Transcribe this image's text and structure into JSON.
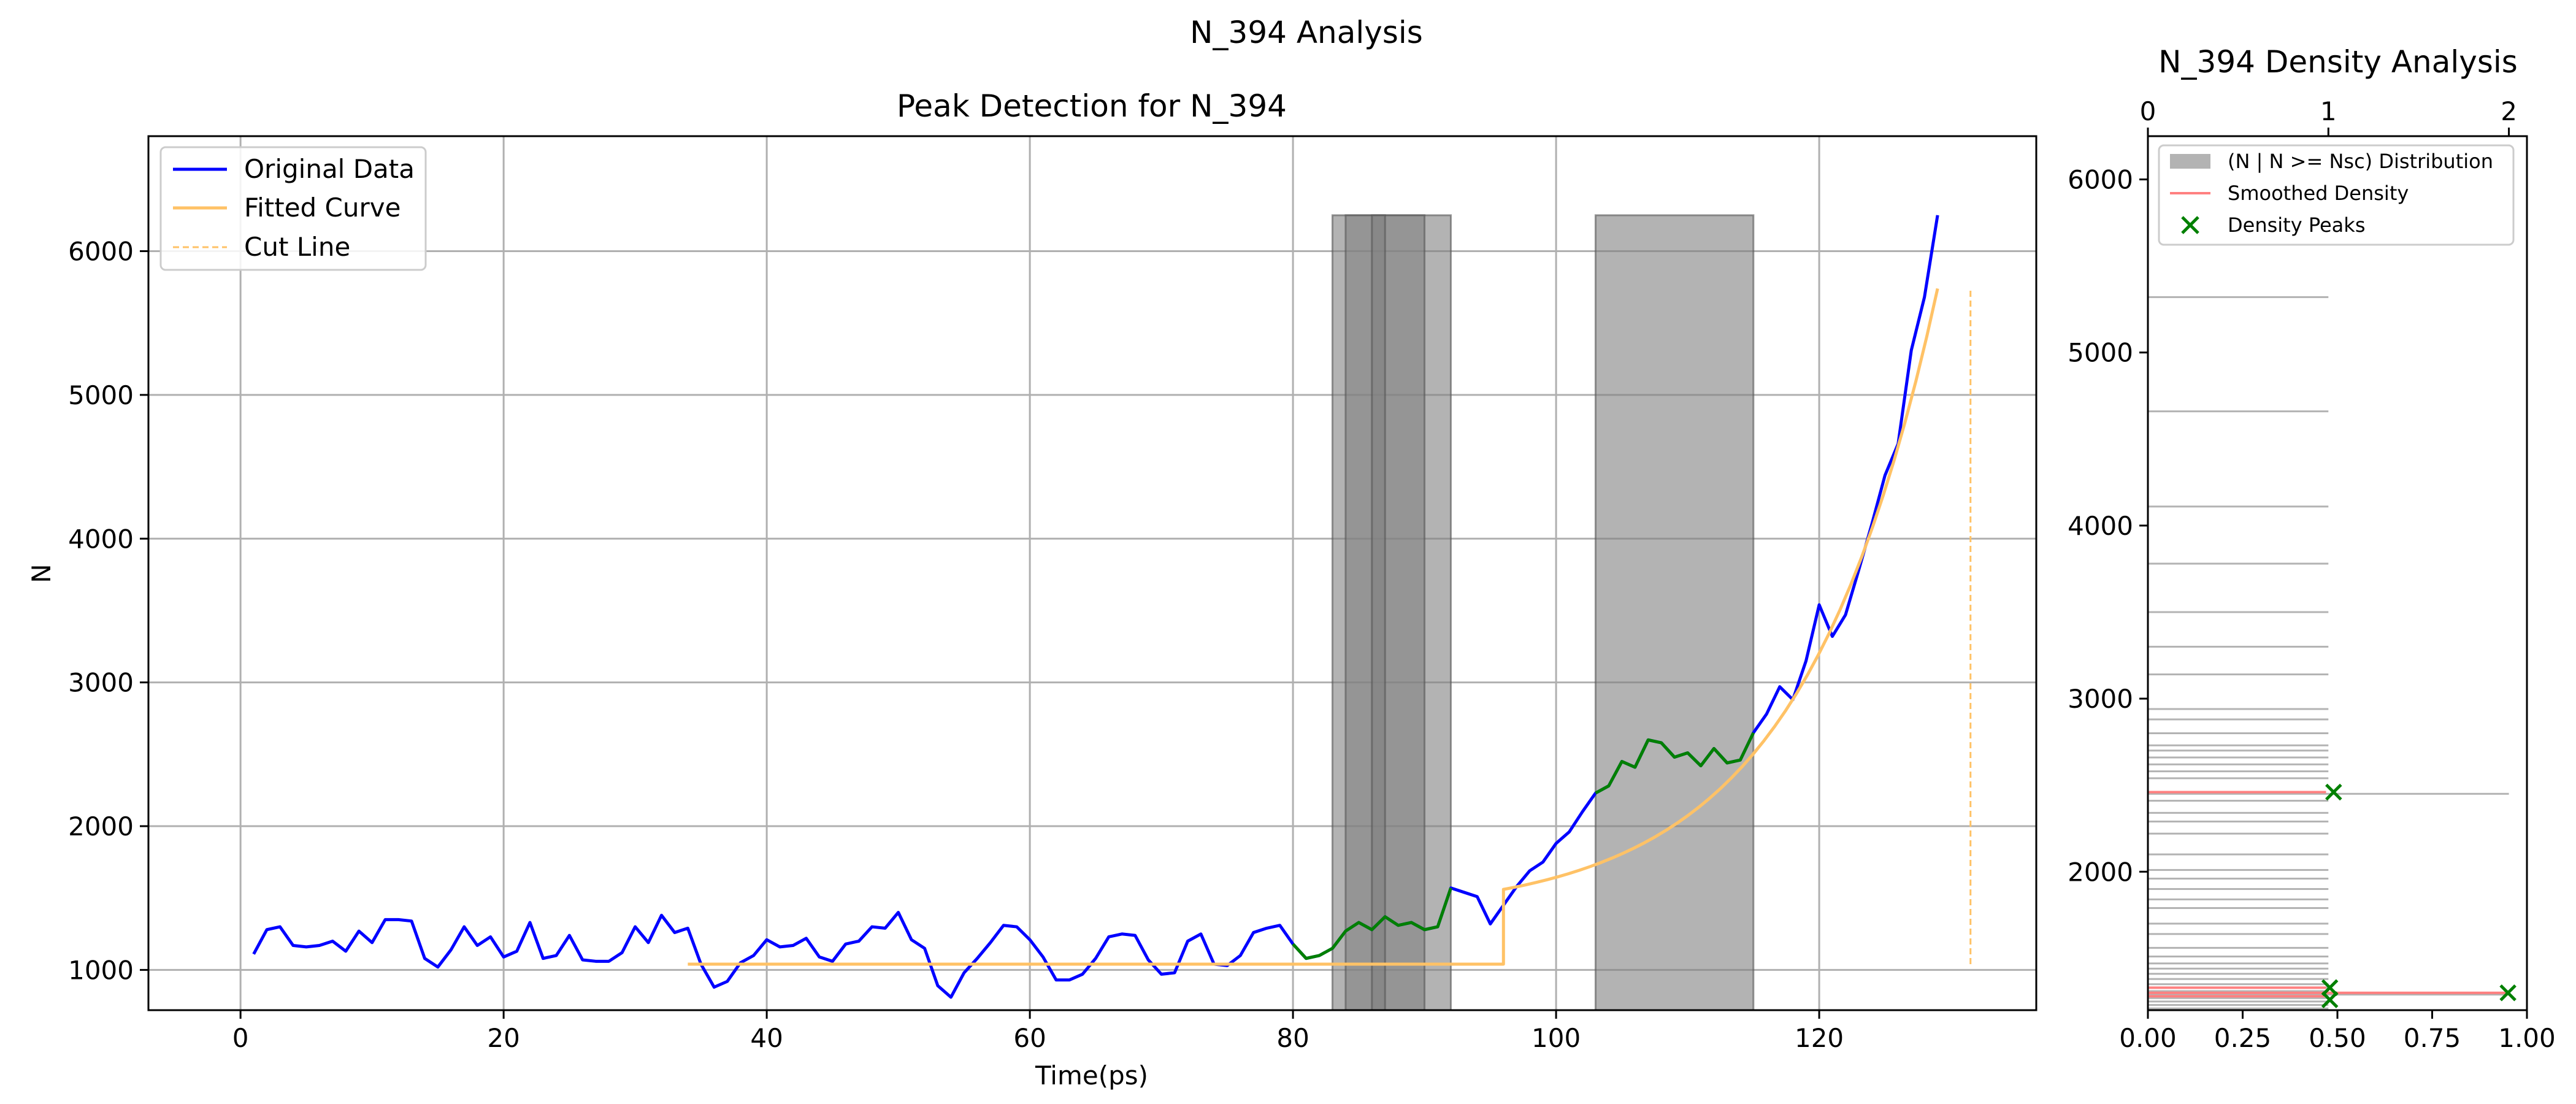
{
  "suptitle": "N_394 Analysis",
  "chart_data": [
    {
      "type": "line",
      "title": "Peak Detection for N_394",
      "xlabel": "Time(ps)",
      "ylabel": "N",
      "xlim": [
        -7,
        136.5
      ],
      "ylim": [
        720,
        6800
      ],
      "xticks": [
        0,
        20,
        40,
        60,
        80,
        100,
        120
      ],
      "yticks": [
        1000,
        2000,
        3000,
        4000,
        5000,
        6000
      ],
      "grid": true,
      "legend_position": "upper-left",
      "legend": [
        "Original Data",
        "Fitted Curve",
        "Cut Line"
      ],
      "colors": {
        "original": "#0000ff",
        "fitted": "#ffc266",
        "peak": "#008000",
        "cut": "#ffc266",
        "band": "#808080"
      },
      "series": [
        {
          "name": "Original Data",
          "x": [
            1,
            2,
            3,
            4,
            5,
            6,
            7,
            8,
            9,
            10,
            11,
            12,
            13,
            14,
            15,
            16,
            17,
            18,
            19,
            20,
            21,
            22,
            23,
            24,
            25,
            26,
            27,
            28,
            29,
            30,
            31,
            32,
            33,
            34,
            35,
            36,
            37,
            38,
            39,
            40,
            41,
            42,
            43,
            44,
            45,
            46,
            47,
            48,
            49,
            50,
            51,
            52,
            53,
            54,
            55,
            56,
            57,
            58,
            59,
            60,
            61,
            62,
            63,
            64,
            65,
            66,
            67,
            68,
            69,
            70,
            71,
            72,
            73,
            74,
            75,
            76,
            77,
            78,
            79,
            80,
            81,
            82,
            83,
            84,
            85,
            86,
            87,
            88,
            89,
            90,
            91,
            92,
            93,
            94,
            95,
            96,
            97,
            98,
            99,
            100,
            101,
            102,
            103,
            104,
            105,
            106,
            107,
            108,
            109,
            110,
            111,
            112,
            113,
            114,
            115,
            116,
            117,
            118,
            119,
            120,
            121,
            122,
            123,
            124,
            125,
            126,
            127,
            128,
            129
          ],
          "y": [
            1110,
            1280,
            1300,
            1170,
            1160,
            1170,
            1200,
            1130,
            1270,
            1190,
            1350,
            1350,
            1340,
            1080,
            1020,
            1140,
            1300,
            1170,
            1230,
            1090,
            1130,
            1330,
            1080,
            1100,
            1240,
            1070,
            1060,
            1060,
            1120,
            1300,
            1190,
            1380,
            1260,
            1290,
            1040,
            880,
            920,
            1050,
            1100,
            1210,
            1160,
            1170,
            1220,
            1090,
            1060,
            1180,
            1200,
            1300,
            1290,
            1400,
            1210,
            1150,
            890,
            810,
            980,
            1080,
            1190,
            1310,
            1300,
            1210,
            1090,
            930,
            930,
            970,
            1080,
            1230,
            1250,
            1240,
            1070,
            970,
            980,
            1200,
            1250,
            1040,
            1030,
            1100,
            1260,
            1290,
            1310,
            1180,
            1080,
            1100,
            1150,
            1270,
            1330,
            1280,
            1370,
            1310,
            1330,
            1280,
            1300,
            1570,
            1540,
            1510,
            1320,
            1450,
            1580,
            1690,
            1750,
            1880,
            1960,
            2100,
            2230,
            2280,
            2450,
            2410,
            2600,
            2580,
            2480,
            2510,
            2420,
            2540,
            2440,
            2460,
            2650,
            2780,
            2970,
            2880,
            3150,
            3540,
            3320,
            3470,
            3780,
            4100,
            4440,
            4660,
            5310,
            5680,
            6250
          ]
        },
        {
          "name": "Peak segments",
          "segments": [
            {
              "x": [
                80,
                81,
                82,
                83,
                84,
                85,
                86,
                87,
                88,
                89,
                90,
                91,
                92
              ],
              "y": [
                1180,
                1080,
                1100,
                1150,
                1270,
                1330,
                1280,
                1370,
                1310,
                1330,
                1280,
                1300,
                1570
              ]
            },
            {
              "x": [
                103,
                104,
                105,
                106,
                107,
                108,
                109,
                110,
                111,
                112,
                113,
                114,
                115
              ],
              "y": [
                2230,
                2280,
                2450,
                2410,
                2600,
                2580,
                2480,
                2510,
                2420,
                2540,
                2440,
                2460,
                2650
              ]
            }
          ]
        },
        {
          "name": "Fitted Curve",
          "flat": {
            "x": [
              34,
              96
            ],
            "y": 1040
          },
          "rise": {
            "x0": 96,
            "x1": 129,
            "y0": 1560,
            "y1": 5740
          }
        },
        {
          "name": "Cut Line",
          "x": 131.5,
          "y": [
            1040,
            5740
          ]
        }
      ],
      "bands": [
        {
          "x": [
            83,
            92
          ],
          "y": [
            720,
            6250
          ]
        },
        {
          "x": [
            84,
            90
          ],
          "y": [
            720,
            6250
          ]
        },
        {
          "x": [
            86,
            87
          ],
          "y": [
            720,
            6250
          ]
        },
        {
          "x": [
            103,
            115
          ],
          "y": [
            720,
            6250
          ]
        }
      ]
    },
    {
      "type": "histogram",
      "title": "N_394 Density Analysis",
      "top_xticks": [
        "0",
        "1",
        "2"
      ],
      "bottom_xticks": [
        "0.00",
        "0.25",
        "0.50",
        "0.75",
        "1.00"
      ],
      "yticks": [
        2000,
        3000,
        4000,
        5000,
        6000
      ],
      "ylim": [
        1200,
        6250
      ],
      "legend_position": "upper-left",
      "legend": [
        "(N | N >= Nsc) Distribution",
        "Smoothed Density",
        "Density Peaks"
      ],
      "colors": {
        "hist": "#b3b3b3",
        "smoothed": "#ff8080",
        "peaks": "#008000"
      },
      "hist_levels": [
        1210,
        1230,
        1250,
        1270,
        1290,
        1310,
        1330,
        1350,
        1380,
        1410,
        1440,
        1470,
        1510,
        1560,
        1640,
        1700,
        1790,
        1840,
        1900,
        1960,
        2010,
        2100,
        2220,
        2290,
        2340,
        2410,
        2450,
        2540,
        2580,
        2620,
        2660,
        2700,
        2730,
        2800,
        2880,
        2940,
        3140,
        3300,
        3500,
        3780,
        4110,
        4660,
        5320
      ],
      "hist_counts": [
        1,
        1,
        1,
        1,
        2,
        1,
        1,
        1,
        1,
        1,
        1,
        1,
        1,
        1,
        1,
        1,
        1,
        1,
        1,
        1,
        1,
        1,
        1,
        1,
        1,
        1,
        2,
        1,
        1,
        1,
        1,
        1,
        1,
        1,
        1,
        1,
        1,
        1,
        1,
        1,
        1,
        1,
        1
      ],
      "smoothed": [
        {
          "y": 1300,
          "x": 0.95
        },
        {
          "y": 1280,
          "x": 0.47
        },
        {
          "y": 1330,
          "x": 0.47
        },
        {
          "y": 2460,
          "x": 0.47
        }
      ],
      "peaks": [
        {
          "y": 1300,
          "x": 0.95
        },
        {
          "y": 1330,
          "x": 0.48
        },
        {
          "y": 1260,
          "x": 0.48
        },
        {
          "y": 2460,
          "x": 0.49
        }
      ]
    }
  ]
}
